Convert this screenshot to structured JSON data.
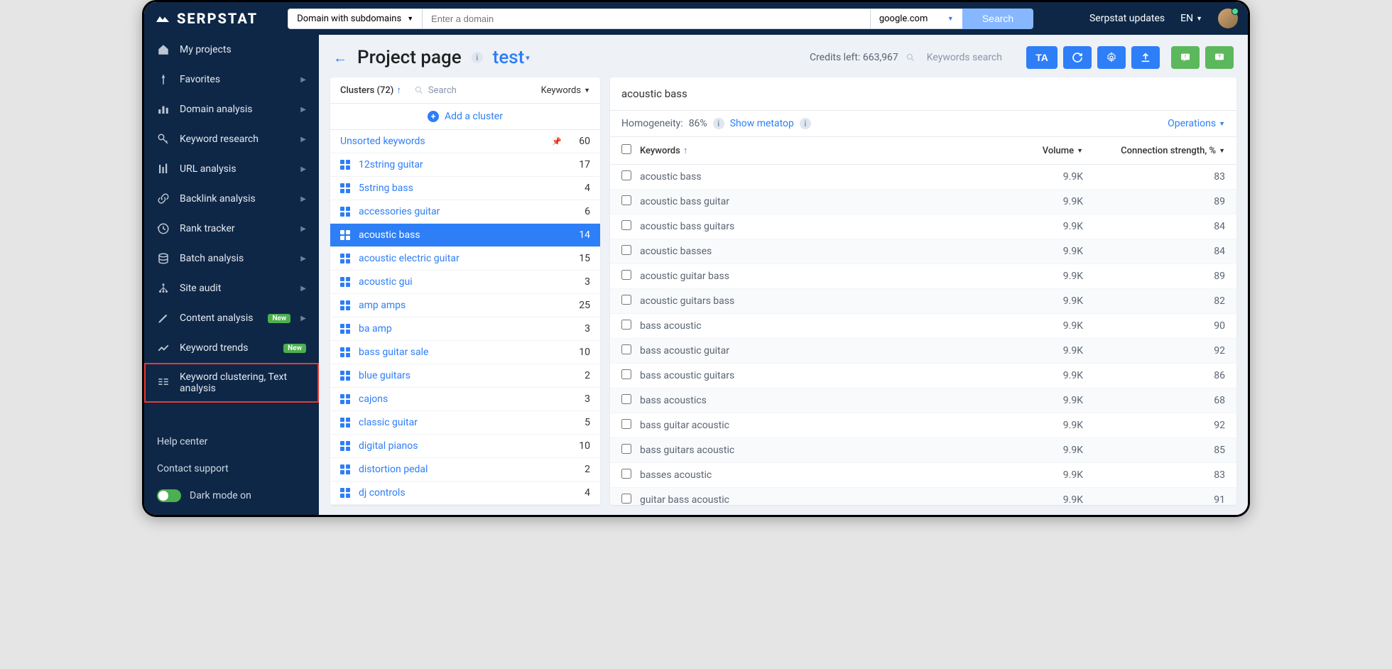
{
  "brand": "SERPSTAT",
  "top": {
    "domain_mode": "Domain with subdomains",
    "domain_placeholder": "Enter a domain",
    "search_engine": "google.com",
    "search_btn": "Search",
    "updates": "Serpstat updates",
    "lang": "EN"
  },
  "sidebar": {
    "items": [
      {
        "icon": "home",
        "label": "My projects",
        "caret": false
      },
      {
        "icon": "pin",
        "label": "Favorites",
        "caret": true
      },
      {
        "icon": "chart",
        "label": "Domain analysis",
        "caret": true
      },
      {
        "icon": "key",
        "label": "Keyword research",
        "caret": true
      },
      {
        "icon": "bars",
        "label": "URL analysis",
        "caret": true
      },
      {
        "icon": "link",
        "label": "Backlink analysis",
        "caret": true
      },
      {
        "icon": "history",
        "label": "Rank tracker",
        "caret": true
      },
      {
        "icon": "stack",
        "label": "Batch analysis",
        "caret": true
      },
      {
        "icon": "tree",
        "label": "Site audit",
        "caret": true
      },
      {
        "icon": "pencil",
        "label": "Content analysis",
        "caret": true,
        "badge": "New"
      },
      {
        "icon": "trend",
        "label": "Keyword trends",
        "badge": "New"
      },
      {
        "icon": "cluster",
        "label": "Keyword clustering, Text analysis",
        "highlight": true
      }
    ],
    "help": "Help center",
    "contact": "Contact support",
    "dark": "Dark mode on"
  },
  "header": {
    "title": "Project page",
    "project": "test",
    "credits_label": "Credits left:",
    "credits_value": "663,967",
    "kw_search": "Keywords search",
    "btns": [
      "TA",
      "refresh",
      "gear",
      "upload",
      "alert",
      "help"
    ]
  },
  "clusters": {
    "head": "Clusters (72)",
    "search_ph": "Search",
    "kw_hd": "Keywords",
    "add": "Add a cluster",
    "rows": [
      {
        "name": "Unsorted keywords",
        "count": 60,
        "unsorted": true
      },
      {
        "name": "12string guitar",
        "count": 17
      },
      {
        "name": "5string bass",
        "count": 4
      },
      {
        "name": "accessories guitar",
        "count": 6
      },
      {
        "name": "acoustic bass",
        "count": 14,
        "active": true
      },
      {
        "name": "acoustic electric guitar",
        "count": 15
      },
      {
        "name": "acoustic gui",
        "count": 3
      },
      {
        "name": "amp amps",
        "count": 25
      },
      {
        "name": "ba amp",
        "count": 3
      },
      {
        "name": "bass guitar sale",
        "count": 10
      },
      {
        "name": "blue guitars",
        "count": 2
      },
      {
        "name": "cajons",
        "count": 3
      },
      {
        "name": "classic guitar",
        "count": 5
      },
      {
        "name": "digital pianos",
        "count": 10
      },
      {
        "name": "distortion pedal",
        "count": 2
      },
      {
        "name": "dj controls",
        "count": 4
      }
    ]
  },
  "keywords": {
    "title": "acoustic bass",
    "homog_label": "Homogeneity:",
    "homog_val": "86%",
    "show_meta": "Show metatop",
    "operations": "Operations",
    "col_kw": "Keywords",
    "col_vol": "Volume",
    "col_conn": "Connection strength, %",
    "rows": [
      {
        "kw": "acoustic bass",
        "vol": "9.9K",
        "conn": 83
      },
      {
        "kw": "acoustic bass guitar",
        "vol": "9.9K",
        "conn": 89
      },
      {
        "kw": "acoustic bass guitars",
        "vol": "9.9K",
        "conn": 84
      },
      {
        "kw": "acoustic basses",
        "vol": "9.9K",
        "conn": 84
      },
      {
        "kw": "acoustic guitar bass",
        "vol": "9.9K",
        "conn": 89
      },
      {
        "kw": "acoustic guitars bass",
        "vol": "9.9K",
        "conn": 82
      },
      {
        "kw": "bass acoustic",
        "vol": "9.9K",
        "conn": 90
      },
      {
        "kw": "bass acoustic guitar",
        "vol": "9.9K",
        "conn": 92
      },
      {
        "kw": "bass acoustic guitars",
        "vol": "9.9K",
        "conn": 86
      },
      {
        "kw": "bass acoustics",
        "vol": "9.9K",
        "conn": 68
      },
      {
        "kw": "bass guitar acoustic",
        "vol": "9.9K",
        "conn": 92
      },
      {
        "kw": "bass guitars acoustic",
        "vol": "9.9K",
        "conn": 85
      },
      {
        "kw": "basses acoustic",
        "vol": "9.9K",
        "conn": 83
      },
      {
        "kw": "guitar bass acoustic",
        "vol": "9.9K",
        "conn": 91
      }
    ]
  }
}
